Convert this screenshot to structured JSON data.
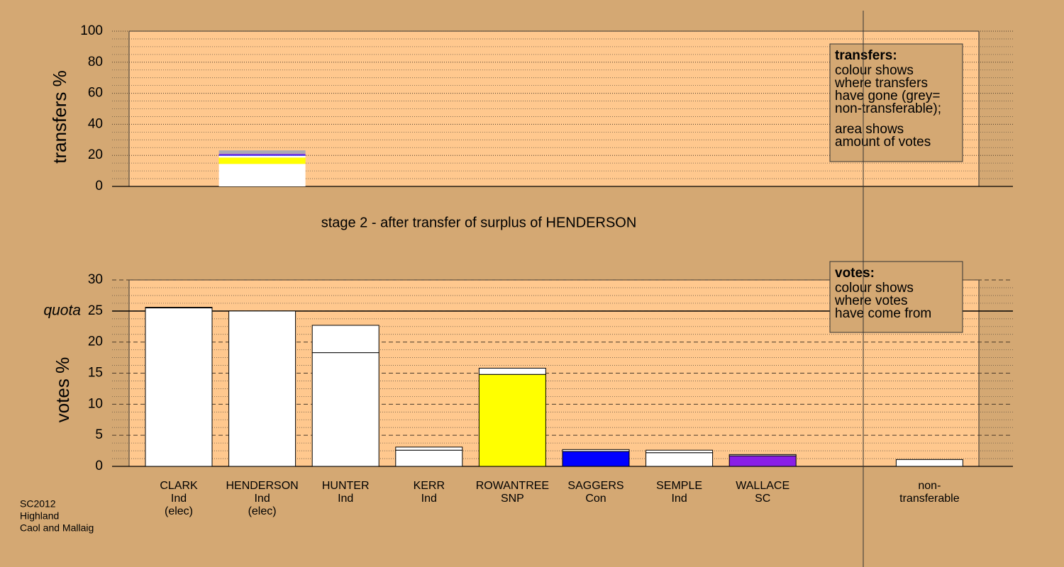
{
  "chart_data": [
    {
      "type": "bar",
      "stacked": true,
      "ylabel": "transfers %",
      "ylim": [
        0,
        100
      ],
      "yticks": [
        0,
        20,
        40,
        60,
        80,
        100
      ],
      "minor_yticks": [
        5,
        10,
        15,
        25,
        30,
        35,
        45,
        50,
        55,
        65,
        70,
        75,
        85,
        90,
        95
      ],
      "major_grid": "dotted",
      "plot_color": "#ffc88e",
      "series": [
        {
          "color": "#ffffff",
          "values": [
            null,
            14.5,
            null,
            null,
            null,
            null,
            null,
            null,
            null,
            null
          ]
        },
        {
          "color": "#ffff00",
          "values": [
            null,
            4.1,
            null,
            null,
            null,
            null,
            null,
            null,
            null,
            null
          ]
        },
        {
          "color": "#ffffff",
          "values": [
            null,
            1.2,
            null,
            null,
            null,
            null,
            null,
            null,
            null,
            null
          ]
        },
        {
          "color": "#0000ff",
          "values": [
            null,
            0.6,
            null,
            null,
            null,
            null,
            null,
            null,
            null,
            null
          ]
        },
        {
          "color": "#8a1ee6",
          "values": [
            null,
            0.5,
            null,
            null,
            null,
            null,
            null,
            null,
            null,
            null
          ]
        },
        {
          "color": "#a9a9b4",
          "values": [
            null,
            2.3,
            null,
            null,
            null,
            null,
            null,
            null,
            null,
            null
          ]
        }
      ],
      "note": {
        "title": "transfers:",
        "paragraphs": [
          [
            "colour shows",
            "where transfers",
            "have gone (grey=",
            "non-transferable);"
          ],
          [
            "area shows",
            "amount of votes"
          ]
        ]
      }
    },
    {
      "type": "bar",
      "stacked": true,
      "title": "stage 2 - after transfer of surplus of HENDERSON",
      "ylabel": "votes %",
      "ylim": [
        0,
        30
      ],
      "yticks": [
        0,
        5,
        10,
        15,
        20,
        25,
        30
      ],
      "minor_yticks": [
        1.25,
        2.5,
        3.75,
        6.25,
        7.5,
        8.75,
        11.25,
        12.5,
        13.75,
        16.25,
        17.5,
        18.75,
        21.25,
        22.5,
        23.75,
        26.25,
        27.5,
        28.75
      ],
      "major_grid": "dashed",
      "plot_color": "#ffc88e",
      "quota": {
        "value": 25,
        "label": "quota"
      },
      "categories": [
        [
          "CLARK",
          "Ind",
          "(elec)"
        ],
        [
          "HENDERSON",
          "Ind",
          "(elec)"
        ],
        [
          "HUNTER",
          "Ind"
        ],
        [
          "KERR",
          "Ind"
        ],
        [
          "ROWANTREE",
          "SNP"
        ],
        [
          "SAGGERS",
          "Con"
        ],
        [
          "SEMPLE",
          "Ind"
        ],
        [
          "WALLACE",
          "SC"
        ],
        null,
        [
          "non-",
          "transferable"
        ]
      ],
      "series": [
        {
          "colors": [
            "#ffffff",
            "#ffffff",
            "#ffffff",
            "#ffffff",
            "#ffff00",
            "#0000ff",
            "#ffffff",
            "#8a1ee6",
            null,
            "#ffffff"
          ],
          "values": [
            25.5,
            25,
            18.3,
            2.6,
            14.8,
            2.4,
            2.2,
            1.7,
            null,
            0
          ]
        },
        {
          "color": "#ffffff",
          "values": [
            0.1,
            0,
            4.4,
            0.5,
            1.0,
            0.3,
            0.4,
            0.2,
            null,
            1.1
          ]
        }
      ],
      "note": {
        "title": "votes:",
        "paragraphs": [
          [
            "colour shows",
            "where votes",
            "have come from"
          ]
        ]
      }
    }
  ],
  "footer": [
    "SC2012",
    "Highland",
    "Caol and Mallaig"
  ]
}
